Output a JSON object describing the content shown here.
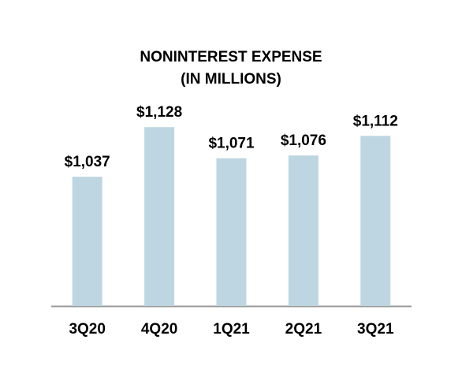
{
  "chart_data": {
    "type": "bar",
    "title": "NONINTEREST EXPENSE",
    "subtitle": "(IN MILLIONS)",
    "categories": [
      "3Q20",
      "4Q20",
      "1Q21",
      "2Q21",
      "3Q21"
    ],
    "values": [
      1037,
      1128,
      1071,
      1076,
      1112
    ],
    "value_labels": [
      "$1,037",
      "$1,128",
      "$1,071",
      "$1,076",
      "$1,112"
    ],
    "color": "#bdd6e1",
    "ylim": [
      800,
      1150
    ]
  }
}
